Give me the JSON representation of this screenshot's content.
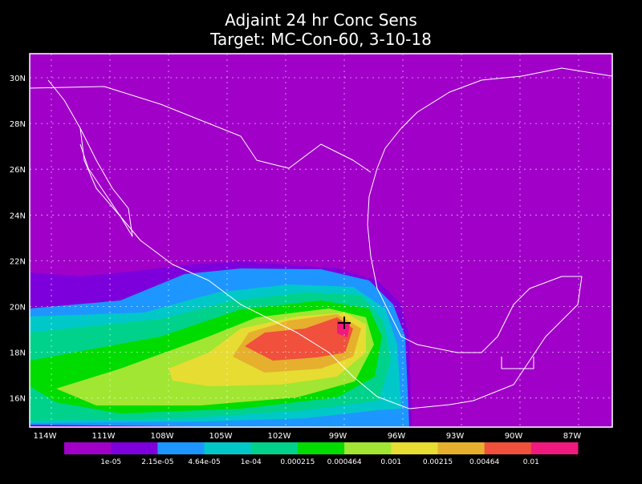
{
  "title": [
    "Adjaint 24 hr Conc Sens",
    "Target: MC-Con-60, 3-10-18"
  ],
  "map": {
    "lat_labels": [
      "30N",
      "28N",
      "26N",
      "24N",
      "22N",
      "20N",
      "18N",
      "16N"
    ],
    "lon_labels": [
      "114W",
      "111W",
      "108W",
      "105W",
      "102W",
      "99W",
      "96W",
      "93W",
      "90W",
      "87W"
    ]
  },
  "colorbar": {
    "colors": [
      "#a000c8",
      "#7d00dc",
      "#1e96ff",
      "#00c8c8",
      "#00d28c",
      "#00dc00",
      "#a0e632",
      "#e6dc32",
      "#e6af2d",
      "#f0503c",
      "#f0197d"
    ],
    "labels": [
      "1e-05",
      "2.15e-05",
      "4.64e-05",
      "1e-04",
      "0.000215",
      "0.000464",
      "0.001",
      "0.00215",
      "0.00464",
      "0.01"
    ]
  }
}
